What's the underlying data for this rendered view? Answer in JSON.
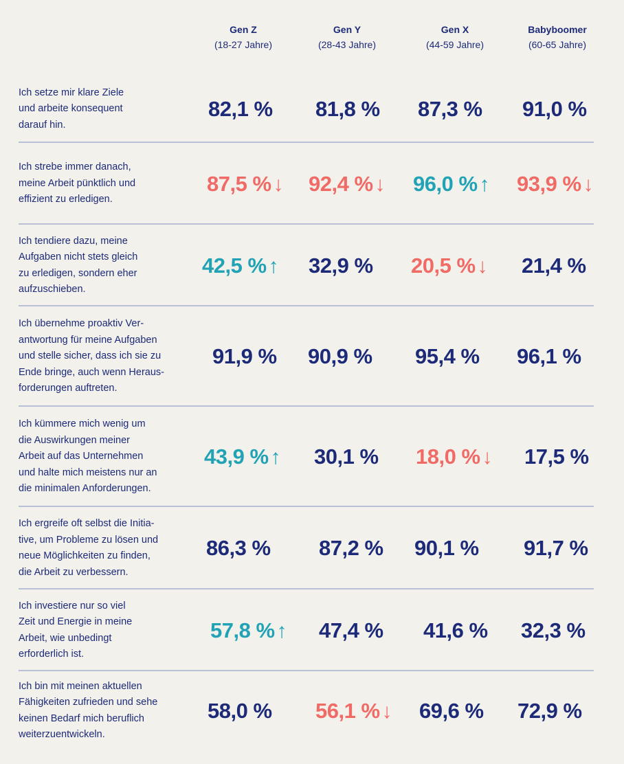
{
  "headers": [
    {
      "gen": "Gen Z",
      "range": "(18-27 Jahre)"
    },
    {
      "gen": "Gen Y",
      "range": "(28-43 Jahre)"
    },
    {
      "gen": "Gen X",
      "range": "(44-59 Jahre)"
    },
    {
      "gen": "Babyboomer",
      "range": "(60-65 Jahre)"
    }
  ],
  "rows": [
    {
      "label": "Ich setze mir klare Ziele\nund arbeite konsequent\ndarauf hin.",
      "values": [
        {
          "v": "82,1 %",
          "t": "none",
          "a": ""
        },
        {
          "v": "81,8 %",
          "t": "none",
          "a": ""
        },
        {
          "v": "87,3 %",
          "t": "none",
          "a": ""
        },
        {
          "v": "91,0 %",
          "t": "none",
          "a": ""
        }
      ]
    },
    {
      "label": "Ich strebe immer danach,\nmeine Arbeit pünktlich und\neffizient zu erledigen.",
      "values": [
        {
          "v": "87,5 %",
          "t": "down",
          "a": "↓"
        },
        {
          "v": "92,4 %",
          "t": "down",
          "a": "↓"
        },
        {
          "v": "96,0 %",
          "t": "up",
          "a": "↑"
        },
        {
          "v": "93,9 %",
          "t": "down",
          "a": "↓"
        }
      ]
    },
    {
      "label": "Ich tendiere dazu, meine\nAufgaben nicht stets gleich\nzu erledigen, sondern eher\naufzuschieben.",
      "values": [
        {
          "v": "42,5 %",
          "t": "up",
          "a": "↑"
        },
        {
          "v": "32,9 %",
          "t": "none",
          "a": ""
        },
        {
          "v": "20,5 %",
          "t": "down",
          "a": "↓"
        },
        {
          "v": "21,4 %",
          "t": "none",
          "a": ""
        }
      ]
    },
    {
      "label": "Ich übernehme proaktiv Ver-\nantwortung für meine Aufgaben\nund stelle sicher, dass ich sie zu\nEnde bringe, auch wenn Heraus-\nforderungen auftreten.",
      "values": [
        {
          "v": "91,9 %",
          "t": "none",
          "a": ""
        },
        {
          "v": "90,9 %",
          "t": "none",
          "a": ""
        },
        {
          "v": "95,4 %",
          "t": "none",
          "a": ""
        },
        {
          "v": "96,1 %",
          "t": "none",
          "a": ""
        }
      ]
    },
    {
      "label": "Ich kümmere mich wenig um\ndie Auswirkungen meiner\nArbeit auf das Unternehmen\nund halte mich meistens nur an\ndie minimalen Anforderungen.",
      "values": [
        {
          "v": "43,9 %",
          "t": "up",
          "a": "↑"
        },
        {
          "v": "30,1 %",
          "t": "none",
          "a": ""
        },
        {
          "v": "18,0 %",
          "t": "down",
          "a": "↓"
        },
        {
          "v": "17,5 %",
          "t": "none",
          "a": ""
        }
      ]
    },
    {
      "label": "Ich ergreife oft selbst die Initia-\ntive, um Probleme zu lösen und\nneue Möglichkeiten zu finden,\ndie Arbeit zu verbessern.",
      "values": [
        {
          "v": "86,3 %",
          "t": "none",
          "a": ""
        },
        {
          "v": "87,2 %",
          "t": "none",
          "a": ""
        },
        {
          "v": "90,1 %",
          "t": "none",
          "a": ""
        },
        {
          "v": "91,7 %",
          "t": "none",
          "a": ""
        }
      ]
    },
    {
      "label": "Ich investiere nur so viel\nZeit und Energie in meine\nArbeit, wie unbedingt\nerforderlich ist.",
      "values": [
        {
          "v": "57,8 %",
          "t": "up",
          "a": "↑"
        },
        {
          "v": "47,4 %",
          "t": "none",
          "a": ""
        },
        {
          "v": "41,6 %",
          "t": "none",
          "a": ""
        },
        {
          "v": "32,3 %",
          "t": "none",
          "a": ""
        }
      ]
    },
    {
      "label": "Ich bin mit meinen aktuellen\nFähigkeiten zufrieden und sehe\nkeinen Bedarf mich beruflich\nweiterzuentwickeln.",
      "values": [
        {
          "v": "58,0 %",
          "t": "none",
          "a": ""
        },
        {
          "v": "56,1 %",
          "t": "down",
          "a": "↓"
        },
        {
          "v": "69,6 %",
          "t": "none",
          "a": ""
        },
        {
          "v": "72,9 %",
          "t": "none",
          "a": ""
        }
      ]
    }
  ]
}
